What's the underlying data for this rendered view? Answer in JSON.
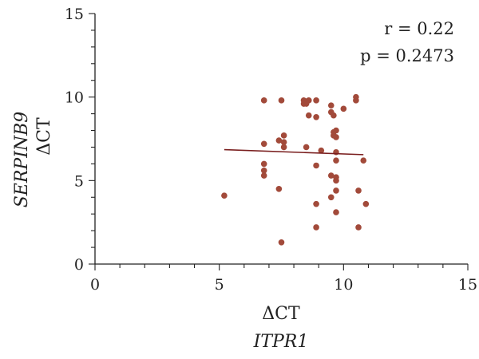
{
  "chart_data": {
    "type": "scatter",
    "title": "",
    "xlabel_lines": [
      "ΔCT",
      "ITPR1"
    ],
    "ylabel_lines": [
      "SERPINB9",
      "ΔCT"
    ],
    "xlim": [
      0,
      15
    ],
    "ylim": [
      0,
      15
    ],
    "xticks": [
      0,
      5,
      10,
      15
    ],
    "yticks": [
      0,
      5,
      10,
      15
    ],
    "grid": false,
    "legend": "none",
    "annotations": [
      "r = 0.22",
      "p = 0.2473"
    ],
    "series": [
      {
        "marker_color": "#a24a3a",
        "points": [
          [
            5.2,
            4.1
          ],
          [
            6.8,
            9.8
          ],
          [
            6.8,
            7.2
          ],
          [
            6.8,
            6.0
          ],
          [
            6.8,
            5.6
          ],
          [
            6.8,
            5.3
          ],
          [
            7.4,
            4.5
          ],
          [
            7.4,
            7.4
          ],
          [
            7.5,
            9.8
          ],
          [
            7.5,
            1.3
          ],
          [
            7.6,
            7.7
          ],
          [
            7.6,
            7.3
          ],
          [
            7.6,
            7.0
          ],
          [
            8.4,
            9.8
          ],
          [
            8.4,
            9.6
          ],
          [
            8.5,
            9.6
          ],
          [
            8.5,
            7.0
          ],
          [
            8.6,
            9.8
          ],
          [
            8.6,
            8.9
          ],
          [
            8.9,
            9.8
          ],
          [
            8.9,
            8.8
          ],
          [
            8.9,
            5.9
          ],
          [
            8.9,
            3.6
          ],
          [
            8.9,
            2.2
          ],
          [
            9.1,
            6.8
          ],
          [
            9.5,
            9.5
          ],
          [
            9.5,
            9.1
          ],
          [
            9.5,
            5.3
          ],
          [
            9.5,
            4.0
          ],
          [
            9.6,
            8.9
          ],
          [
            9.6,
            7.9
          ],
          [
            9.6,
            7.7
          ],
          [
            9.7,
            8.0
          ],
          [
            9.7,
            7.6
          ],
          [
            9.7,
            6.7
          ],
          [
            9.7,
            6.2
          ],
          [
            9.7,
            5.2
          ],
          [
            9.7,
            5.0
          ],
          [
            9.7,
            4.4
          ],
          [
            9.7,
            3.1
          ],
          [
            10.0,
            9.3
          ],
          [
            10.5,
            10.0
          ],
          [
            10.5,
            9.8
          ],
          [
            10.6,
            4.4
          ],
          [
            10.6,
            2.2
          ],
          [
            10.8,
            6.2
          ],
          [
            10.9,
            3.6
          ]
        ]
      }
    ],
    "trendline": {
      "x": [
        5.2,
        10.8
      ],
      "y": [
        6.85,
        6.55
      ],
      "color": "#7a1f1f"
    }
  }
}
